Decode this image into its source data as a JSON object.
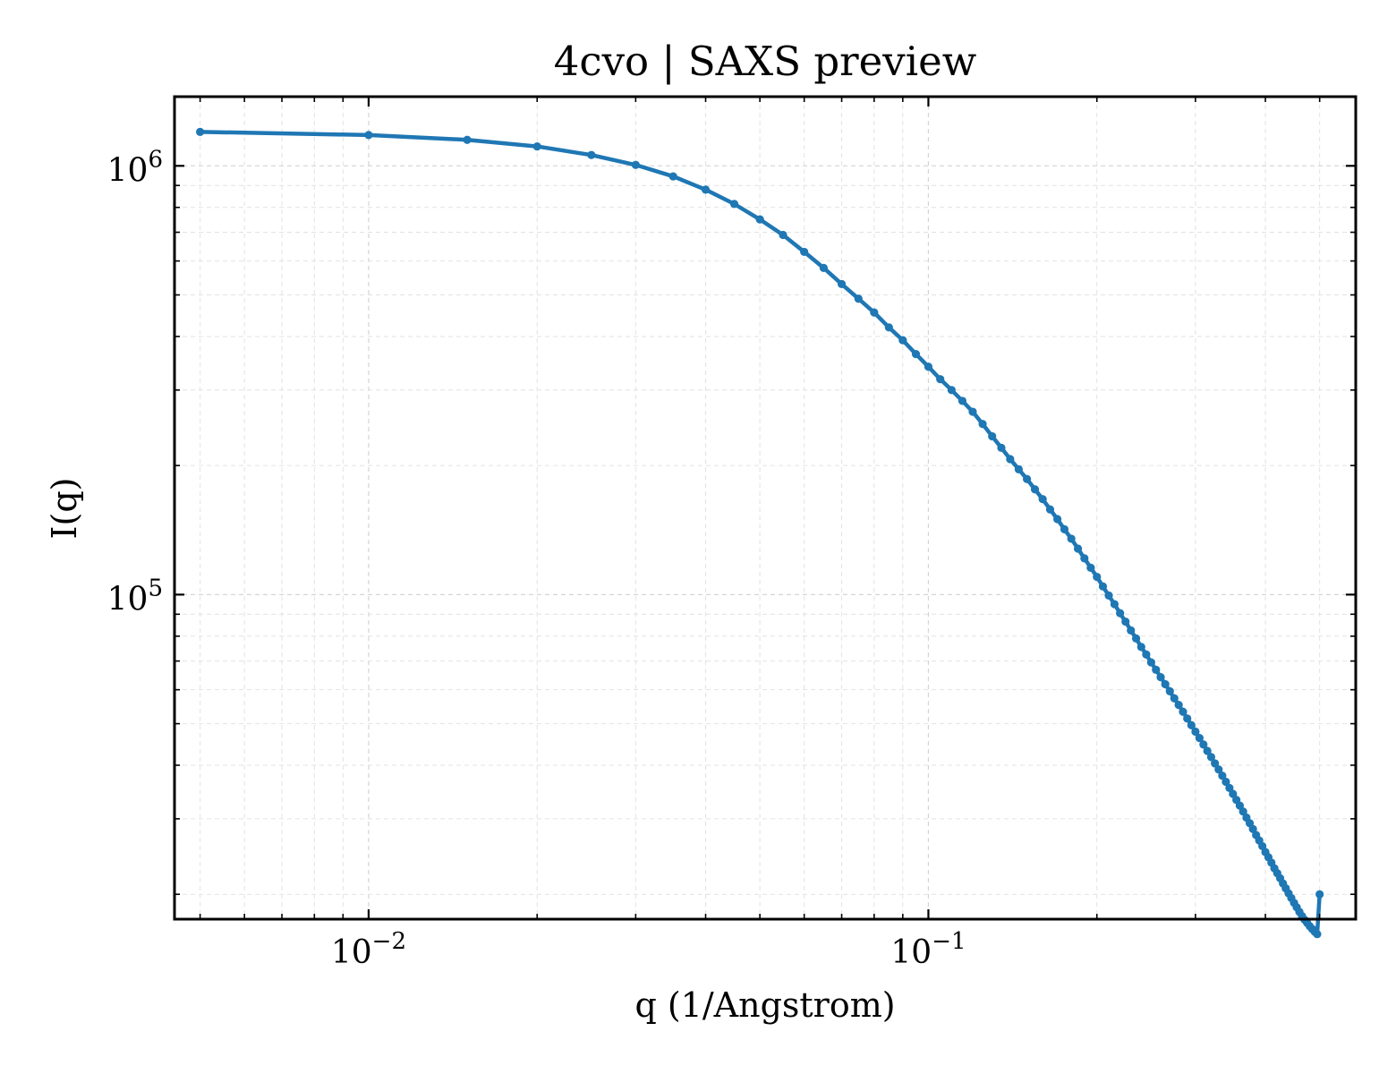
{
  "chart_data": {
    "type": "line",
    "title": "4cvo | SAXS preview",
    "xlabel": "q (1/Angstrom)",
    "ylabel": "I(q)",
    "xscale": "log",
    "yscale": "log",
    "xlim": [
      0.0045,
      0.58
    ],
    "ylim": [
      17500,
      1450000
    ],
    "x_major_ticks": [
      {
        "value": 0.01,
        "base": "10",
        "exp": "−2"
      },
      {
        "value": 0.1,
        "base": "10",
        "exp": "−1"
      }
    ],
    "y_major_ticks": [
      {
        "value": 100000,
        "base": "10",
        "exp": "5"
      },
      {
        "value": 1000000,
        "base": "10",
        "exp": "6"
      }
    ],
    "grid": true,
    "series": [
      {
        "color": "#1f77b4",
        "marker": "circle",
        "x": [
          0.005,
          0.01,
          0.015,
          0.02,
          0.025,
          0.03,
          0.035,
          0.04,
          0.045,
          0.05,
          0.055,
          0.06,
          0.065,
          0.07,
          0.075,
          0.08,
          0.085,
          0.09,
          0.095,
          0.1,
          0.105,
          0.11,
          0.115,
          0.12,
          0.125,
          0.13,
          0.135,
          0.14,
          0.145,
          0.15,
          0.155,
          0.16,
          0.165,
          0.17,
          0.175,
          0.18,
          0.185,
          0.19,
          0.195,
          0.2,
          0.205,
          0.21,
          0.215,
          0.22,
          0.225,
          0.23,
          0.235,
          0.24,
          0.245,
          0.25,
          0.255,
          0.26,
          0.265,
          0.27,
          0.275,
          0.28,
          0.285,
          0.29,
          0.295,
          0.3,
          0.305,
          0.31,
          0.315,
          0.32,
          0.325,
          0.33,
          0.335,
          0.34,
          0.345,
          0.35,
          0.355,
          0.36,
          0.365,
          0.37,
          0.375,
          0.38,
          0.385,
          0.39,
          0.395,
          0.4,
          0.405,
          0.41,
          0.415,
          0.42,
          0.425,
          0.43,
          0.435,
          0.44,
          0.445,
          0.45,
          0.455,
          0.46,
          0.465,
          0.47,
          0.475,
          0.48,
          0.485,
          0.49,
          0.495,
          0.5
        ],
        "y": [
          1200000,
          1180000,
          1150000,
          1110000,
          1060000,
          1005000,
          945000,
          880000,
          815000,
          750000,
          690000,
          630000,
          578000,
          530000,
          490000,
          455000,
          420000,
          392000,
          364000,
          340000,
          318000,
          300000,
          283000,
          267000,
          250000,
          234000,
          220000,
          207000,
          196000,
          186000,
          176000,
          167000,
          158000,
          150000,
          142000,
          135000,
          128000,
          121500,
          115500,
          110000,
          104500,
          99500,
          95000,
          90500,
          86500,
          82500,
          79000,
          75500,
          72500,
          69500,
          66800,
          64200,
          61800,
          59500,
          57300,
          55300,
          53300,
          51400,
          49600,
          47900,
          46300,
          44700,
          43200,
          41800,
          40400,
          39100,
          37800,
          36600,
          35400,
          34300,
          33200,
          32200,
          31200,
          30200,
          29300,
          28400,
          27500,
          26700,
          25900,
          25100,
          24400,
          23700,
          23000,
          22400,
          21800,
          21200,
          20650,
          20100,
          19600,
          19100,
          18650,
          18200,
          17800,
          17450,
          17150,
          16850,
          16600,
          16350,
          16150,
          20000
        ]
      }
    ]
  }
}
